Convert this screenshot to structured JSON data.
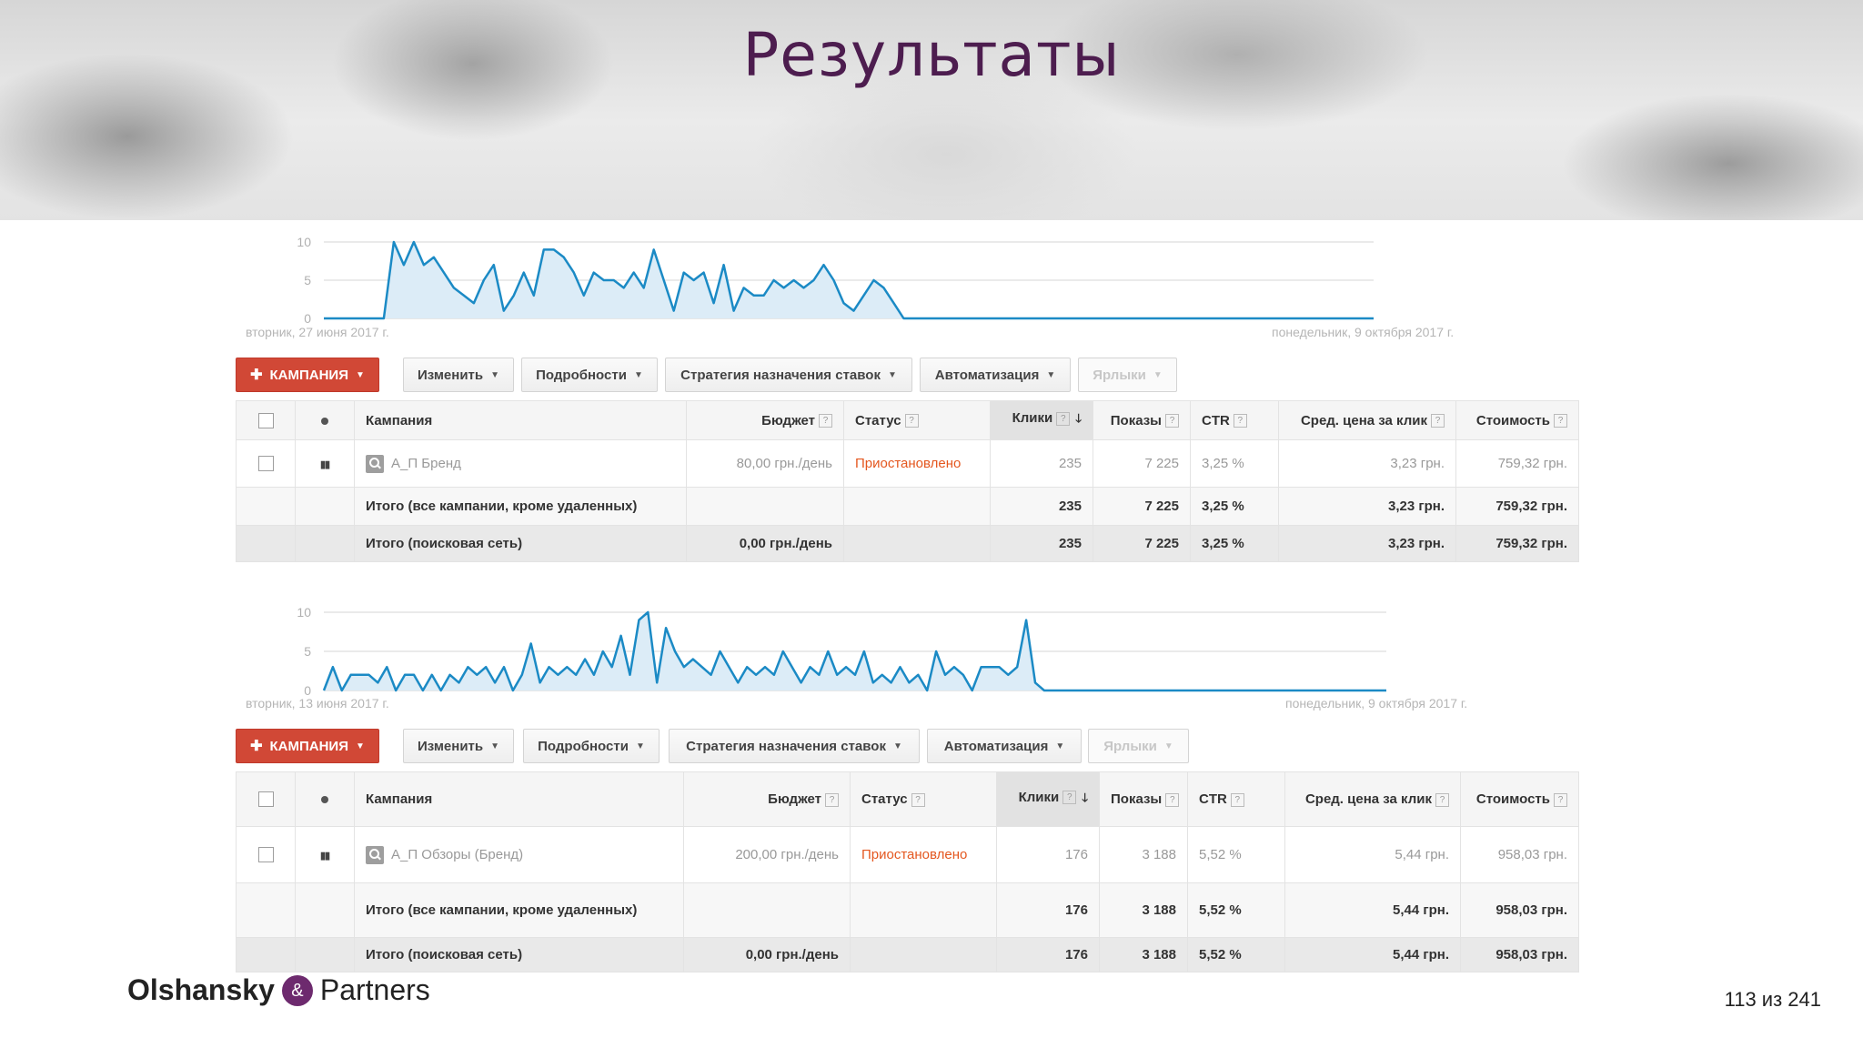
{
  "slide": {
    "title": "Результаты",
    "page_number": "113 из 241"
  },
  "logo": {
    "name_left": "Olshansky",
    "ampersand": "&",
    "name_right": "Partners"
  },
  "panels": [
    {
      "chart": {
        "start_label": "вторник, 27 июня 2017 г.",
        "end_label": "понедельник, 9 октября 2017 г."
      },
      "toolbar": {
        "campaign": "КАМПАНИЯ",
        "edit": "Изменить",
        "details": "Подробности",
        "bidding": "Стратегия назначения ставок",
        "automation": "Автоматизация",
        "labels": "Ярлыки"
      },
      "headers": {
        "campaign": "Кампания",
        "budget": "Бюджет",
        "status": "Статус",
        "clicks": "Клики",
        "impressions": "Показы",
        "ctr": "CTR",
        "avg_cpc": "Сред. цена за клик",
        "cost": "Стоимость"
      },
      "row": {
        "campaign": "А_П Бренд",
        "budget": "80,00 грн./день",
        "status": "Приостановлено",
        "clicks": "235",
        "impressions": "7 225",
        "ctr": "3,25 %",
        "avg_cpc": "3,23 грн.",
        "cost": "759,32 грн."
      },
      "total_all": {
        "label": "Итого (все кампании, кроме удаленных)",
        "clicks": "235",
        "impressions": "7 225",
        "ctr": "3,25 %",
        "avg_cpc": "3,23 грн.",
        "cost": "759,32 грн."
      },
      "total_search": {
        "label": "Итого (поисковая сеть)",
        "budget": "0,00 грн./день",
        "clicks": "235",
        "impressions": "7 225",
        "ctr": "3,25 %",
        "avg_cpc": "3,23 грн.",
        "cost": "759,32 грн."
      }
    },
    {
      "chart": {
        "start_label": "вторник, 13 июня 2017 г.",
        "end_label": "понедельник, 9 октября 2017 г."
      },
      "toolbar": {
        "campaign": "КАМПАНИЯ",
        "edit": "Изменить",
        "details": "Подробности",
        "bidding": "Стратегия назначения ставок",
        "automation": "Автоматизация",
        "labels": "Ярлыки"
      },
      "headers": {
        "campaign": "Кампания",
        "budget": "Бюджет",
        "status": "Статус",
        "clicks": "Клики",
        "impressions": "Показы",
        "ctr": "CTR",
        "avg_cpc": "Сред. цена за клик",
        "cost": "Стоимость"
      },
      "row": {
        "campaign": "А_П Обзоры (Бренд)",
        "budget": "200,00 грн./день",
        "status": "Приостановлено",
        "clicks": "176",
        "impressions": "3 188",
        "ctr": "5,52 %",
        "avg_cpc": "5,44 грн.",
        "cost": "958,03 грн."
      },
      "total_all": {
        "label": "Итого (все кампании, кроме удаленных)",
        "clicks": "176",
        "impressions": "3 188",
        "ctr": "5,52 %",
        "avg_cpc": "5,44 грн.",
        "cost": "958,03 грн."
      },
      "total_search": {
        "label": "Итого (поисковая сеть)",
        "budget": "0,00 грн./день",
        "clicks": "176",
        "impressions": "3 188",
        "ctr": "5,52 %",
        "avg_cpc": "5,44 грн.",
        "cost": "958,03 грн."
      }
    }
  ],
  "chart_data": [
    {
      "type": "area",
      "yticks": [
        0,
        5,
        10
      ],
      "ylim": [
        0,
        10
      ],
      "x_start": "вторник, 27 июня 2017 г.",
      "x_end": "понедельник, 9 октября 2017 г.",
      "series": [
        {
          "values": [
            0,
            0,
            0,
            0,
            0,
            0,
            0,
            10,
            7,
            10,
            7,
            8,
            6,
            4,
            3,
            2,
            5,
            7,
            1,
            3,
            6,
            3,
            9,
            9,
            8,
            6,
            3,
            6,
            5,
            5,
            4,
            6,
            4,
            9,
            5,
            1,
            6,
            5,
            6,
            2,
            7,
            1,
            4,
            3,
            3,
            5,
            4,
            5,
            4,
            5,
            7,
            5,
            2,
            1,
            3,
            5,
            4,
            2,
            0,
            0,
            0,
            0,
            0,
            0,
            0,
            0,
            0,
            0,
            0,
            0,
            0,
            0,
            0,
            0,
            0,
            0,
            0,
            0,
            0,
            0,
            0,
            0,
            0,
            0,
            0,
            0,
            0,
            0,
            0,
            0,
            0,
            0,
            0,
            0,
            0,
            0,
            0,
            0,
            0,
            0,
            0,
            0,
            0,
            0,
            0,
            0
          ]
        }
      ]
    },
    {
      "type": "area",
      "yticks": [
        0,
        5,
        10
      ],
      "ylim": [
        0,
        10
      ],
      "x_start": "вторник, 13 июня 2017 г.",
      "x_end": "понедельник, 9 октября 2017 г.",
      "series": [
        {
          "values": [
            0,
            3,
            0,
            2,
            2,
            2,
            1,
            3,
            0,
            2,
            2,
            0,
            2,
            0,
            2,
            1,
            3,
            2,
            3,
            1,
            3,
            0,
            2,
            6,
            1,
            3,
            2,
            3,
            2,
            4,
            2,
            5,
            3,
            7,
            2,
            9,
            10,
            1,
            8,
            5,
            3,
            4,
            3,
            2,
            5,
            3,
            1,
            3,
            2,
            3,
            2,
            5,
            3,
            1,
            3,
            2,
            5,
            2,
            3,
            2,
            5,
            1,
            2,
            1,
            3,
            1,
            2,
            0,
            5,
            2,
            3,
            2,
            0,
            3,
            3,
            3,
            2,
            3,
            9,
            1,
            0,
            0,
            0,
            0,
            0,
            0,
            0,
            0,
            0,
            0,
            0,
            0,
            0,
            0,
            0,
            0,
            0,
            0,
            0,
            0,
            0,
            0,
            0,
            0,
            0,
            0,
            0,
            0,
            0,
            0,
            0,
            0,
            0,
            0,
            0,
            0,
            0,
            0,
            0
          ]
        }
      ]
    }
  ]
}
